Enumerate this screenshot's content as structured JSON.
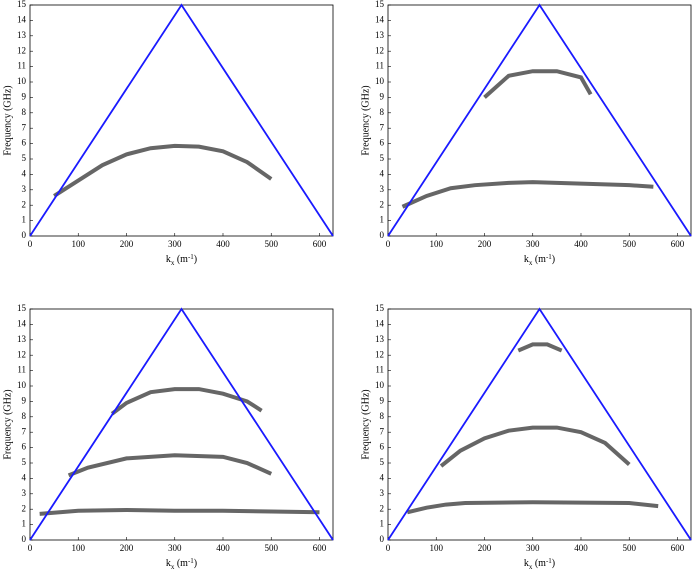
{
  "chart_data": [
    {
      "type": "line",
      "ylabel": "Frequency (GHz)",
      "xlabel": [
        "k",
        "x",
        " (m",
        "-1",
        ")"
      ],
      "xlim": [
        0,
        628
      ],
      "ylim": [
        0,
        15
      ],
      "xticks": [
        0,
        100,
        200,
        300,
        400,
        500,
        600
      ],
      "yticks": [
        0,
        1,
        2,
        3,
        4,
        5,
        6,
        7,
        8,
        9,
        10,
        11,
        12,
        13,
        14,
        15
      ],
      "series": [
        {
          "color": "#333333",
          "x": [
            50,
            100,
            150,
            200,
            250,
            300,
            350,
            400,
            450,
            500
          ],
          "values": [
            2.6,
            3.6,
            4.6,
            5.3,
            5.7,
            5.85,
            5.8,
            5.5,
            4.8,
            3.7
          ]
        },
        {
          "color": "#1a1aff",
          "x": [
            0,
            314,
            628
          ],
          "values": [
            0,
            15,
            0
          ]
        }
      ]
    },
    {
      "type": "line",
      "ylabel": "Frequency (GHz)",
      "xlabel": [
        "k",
        "x",
        " (m",
        "-1",
        ")"
      ],
      "xlim": [
        0,
        628
      ],
      "ylim": [
        0,
        15
      ],
      "xticks": [
        0,
        100,
        200,
        300,
        400,
        500,
        600
      ],
      "yticks": [
        0,
        1,
        2,
        3,
        4,
        5,
        6,
        7,
        8,
        9,
        10,
        11,
        12,
        13,
        14,
        15
      ],
      "series": [
        {
          "color": "#333333",
          "x": [
            30,
            80,
            130,
            180,
            250,
            300,
            350,
            400,
            450,
            500,
            550
          ],
          "values": [
            1.9,
            2.6,
            3.1,
            3.3,
            3.45,
            3.5,
            3.45,
            3.4,
            3.35,
            3.3,
            3.2
          ]
        },
        {
          "color": "#333333",
          "x": [
            200,
            250,
            300,
            350,
            400,
            420
          ],
          "values": [
            9.0,
            10.4,
            10.7,
            10.7,
            10.3,
            9.2
          ]
        },
        {
          "color": "#1a1aff",
          "x": [
            0,
            314,
            628
          ],
          "values": [
            0,
            15,
            0
          ]
        }
      ]
    },
    {
      "type": "line",
      "ylabel": "Frequency (GHz)",
      "xlabel": [
        "k",
        "x",
        " (m",
        "-1",
        ")"
      ],
      "xlim": [
        0,
        628
      ],
      "ylim": [
        0,
        15
      ],
      "xticks": [
        0,
        100,
        200,
        300,
        400,
        500,
        600
      ],
      "yticks": [
        0,
        1,
        2,
        3,
        4,
        5,
        6,
        7,
        8,
        9,
        10,
        11,
        12,
        13,
        14,
        15
      ],
      "series": [
        {
          "color": "#333333",
          "x": [
            20,
            100,
            200,
            300,
            400,
            500,
            600
          ],
          "values": [
            1.7,
            1.9,
            1.95,
            1.9,
            1.9,
            1.85,
            1.8
          ]
        },
        {
          "color": "#333333",
          "x": [
            80,
            120,
            200,
            300,
            400,
            450,
            500
          ],
          "values": [
            4.2,
            4.7,
            5.3,
            5.5,
            5.4,
            5.0,
            4.3
          ]
        },
        {
          "color": "#333333",
          "x": [
            170,
            200,
            250,
            300,
            350,
            400,
            450,
            480
          ],
          "values": [
            8.2,
            8.9,
            9.6,
            9.8,
            9.8,
            9.5,
            9.0,
            8.4
          ]
        },
        {
          "color": "#1a1aff",
          "x": [
            0,
            314,
            628
          ],
          "values": [
            0,
            15,
            0
          ]
        }
      ]
    },
    {
      "type": "line",
      "ylabel": "Frequency (GHz)",
      "xlabel": [
        "k",
        "x",
        " (m",
        "-1",
        ")"
      ],
      "xlim": [
        0,
        628
      ],
      "ylim": [
        0,
        15
      ],
      "xticks": [
        0,
        100,
        200,
        300,
        400,
        500,
        600
      ],
      "yticks": [
        0,
        1,
        2,
        3,
        4,
        5,
        6,
        7,
        8,
        9,
        10,
        11,
        12,
        13,
        14,
        15
      ],
      "series": [
        {
          "color": "#333333",
          "x": [
            40,
            80,
            120,
            160,
            300,
            500,
            560
          ],
          "values": [
            1.8,
            2.1,
            2.3,
            2.4,
            2.45,
            2.4,
            2.2
          ]
        },
        {
          "color": "#333333",
          "x": [
            110,
            150,
            200,
            250,
            300,
            350,
            400,
            450,
            500
          ],
          "values": [
            4.8,
            5.8,
            6.6,
            7.1,
            7.3,
            7.3,
            7.0,
            6.3,
            4.9
          ]
        },
        {
          "color": "#333333",
          "x": [
            270,
            300,
            330,
            360
          ],
          "values": [
            12.3,
            12.7,
            12.7,
            12.3
          ]
        },
        {
          "color": "#1a1aff",
          "x": [
            0,
            314,
            628
          ],
          "values": [
            0,
            15,
            0
          ]
        }
      ]
    }
  ]
}
